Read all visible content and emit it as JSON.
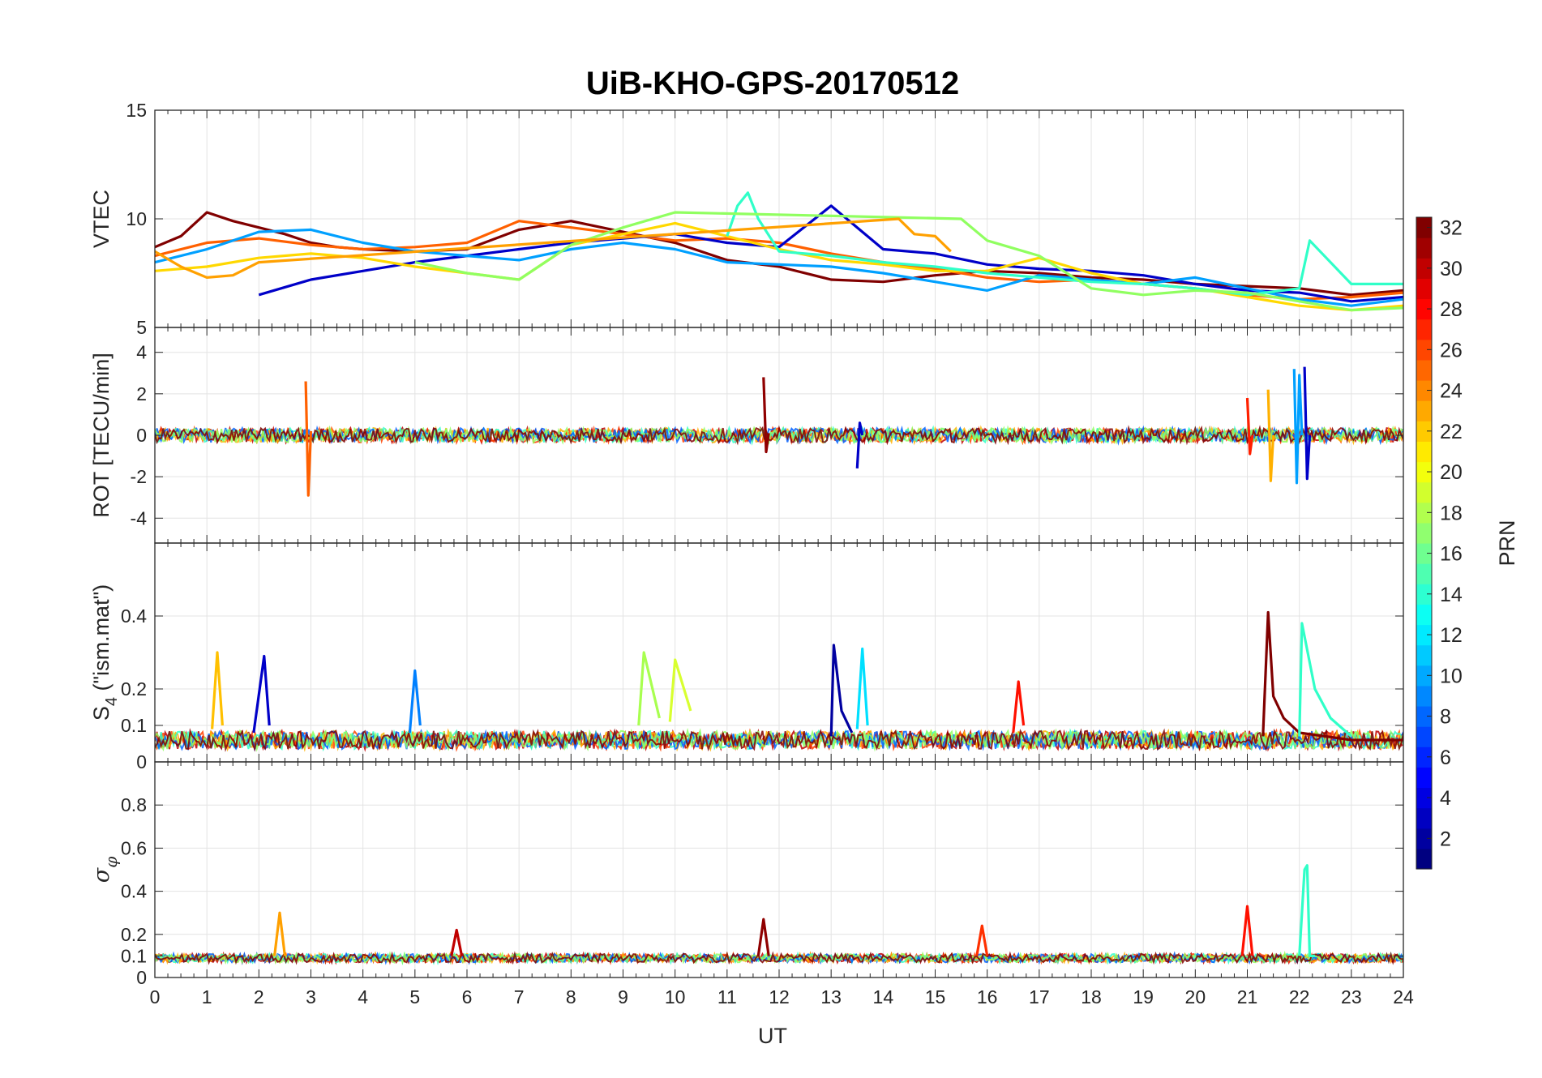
{
  "chart_data": {
    "type": "line",
    "title": "UiB-KHO-GPS-20170512",
    "xlabel": "UT",
    "xlim": [
      0,
      24
    ],
    "x_ticks": [
      "0",
      "1",
      "2",
      "3",
      "4",
      "5",
      "6",
      "7",
      "8",
      "9",
      "10",
      "11",
      "12",
      "13",
      "14",
      "15",
      "16",
      "17",
      "18",
      "19",
      "20",
      "21",
      "22",
      "23",
      "24"
    ],
    "grid": true,
    "colorbar": {
      "label": "PRN",
      "range": [
        1,
        32
      ],
      "colormap": "jet",
      "ticks": [
        "2",
        "4",
        "6",
        "8",
        "10",
        "12",
        "14",
        "16",
        "18",
        "20",
        "22",
        "24",
        "26",
        "28",
        "30",
        "32"
      ]
    },
    "panels": [
      {
        "id": "vtec",
        "ylabel": "VTEC",
        "ylim": [
          5,
          15
        ],
        "y_tick_values": [
          5,
          10,
          15
        ],
        "y_tick_labels": [
          "5",
          "10",
          "15"
        ],
        "series": [
          {
            "color": "#800000",
            "x": [
              0,
              0.5,
              1,
              1.5,
              2,
              2.5,
              3,
              3.5,
              4,
              5,
              6,
              7,
              8,
              9,
              10,
              11,
              12,
              13,
              14,
              15,
              16,
              17,
              18,
              19,
              20,
              21,
              22,
              23,
              24
            ],
            "values": [
              8.7,
              9.2,
              10.3,
              9.9,
              9.6,
              9.3,
              8.9,
              8.7,
              8.6,
              8.5,
              8.6,
              9.5,
              9.9,
              9.4,
              8.9,
              8.1,
              7.8,
              7.2,
              7.1,
              7.4,
              7.6,
              7.5,
              7.3,
              7.2,
              7.0,
              6.9,
              6.8,
              6.5,
              6.7
            ]
          },
          {
            "color": "#ff6000",
            "x": [
              0,
              1,
              2,
              3,
              4,
              5,
              6,
              7,
              8,
              9,
              10,
              11,
              12,
              13,
              14,
              15,
              16,
              17,
              18,
              19,
              20,
              21,
              22,
              23,
              24
            ],
            "values": [
              8.3,
              8.9,
              9.1,
              8.8,
              8.6,
              8.7,
              8.9,
              9.9,
              9.6,
              9.3,
              9.0,
              9.1,
              8.9,
              8.4,
              8.0,
              7.7,
              7.3,
              7.1,
              7.2,
              7.0,
              6.8,
              6.5,
              6.3,
              6.4,
              6.6
            ]
          },
          {
            "color": "#0000c8",
            "x": [
              2,
              3,
              4,
              5,
              6,
              7,
              8,
              9,
              10,
              11,
              12,
              13,
              14,
              15,
              16,
              17,
              18,
              19,
              20,
              21,
              22,
              23,
              24
            ],
            "values": [
              6.5,
              7.2,
              7.6,
              8.0,
              8.3,
              8.6,
              8.9,
              9.1,
              9.3,
              8.9,
              8.7,
              10.6,
              8.6,
              8.4,
              7.9,
              7.7,
              7.6,
              7.4,
              7.0,
              6.7,
              6.6,
              6.2,
              6.4
            ]
          },
          {
            "color": "#00a0ff",
            "x": [
              0,
              1,
              2,
              3,
              4,
              5,
              6,
              7,
              8,
              9,
              10,
              11,
              12,
              13,
              14,
              15,
              16,
              17,
              18,
              19,
              20,
              21,
              22,
              23,
              24
            ],
            "values": [
              8.0,
              8.6,
              9.4,
              9.5,
              8.9,
              8.5,
              8.3,
              8.1,
              8.6,
              8.9,
              8.6,
              8.0,
              7.9,
              7.8,
              7.5,
              7.1,
              6.7,
              7.4,
              7.2,
              7.0,
              7.3,
              6.8,
              6.3,
              6.0,
              6.3
            ]
          },
          {
            "color": "#ffd800",
            "x": [
              0,
              1,
              2,
              3,
              4,
              5,
              6,
              7,
              8,
              9,
              10,
              11,
              12,
              13,
              14,
              15,
              16,
              17,
              18,
              19,
              20,
              21,
              22,
              23,
              24
            ],
            "values": [
              7.6,
              7.8,
              8.2,
              8.4,
              8.2,
              7.8,
              7.5,
              7.2,
              8.8,
              9.3,
              9.8,
              9.2,
              8.6,
              8.1,
              7.9,
              7.6,
              7.6,
              8.2,
              7.5,
              7.0,
              6.8,
              6.4,
              6.0,
              5.8,
              6.0
            ]
          },
          {
            "color": "#30ffc8",
            "x": [
              11,
              11.2,
              11.4,
              11.6,
              12,
              13,
              14,
              15,
              16,
              17,
              18,
              19,
              20,
              21,
              22,
              22.2,
              23,
              24
            ],
            "values": [
              9.2,
              10.6,
              11.2,
              10.0,
              8.5,
              8.3,
              8.0,
              7.8,
              7.5,
              7.3,
              7.1,
              7.0,
              6.8,
              6.5,
              6.8,
              9.0,
              7.0,
              7.0
            ]
          },
          {
            "color": "#90ff60",
            "x": [
              5,
              6,
              7,
              8,
              9,
              10,
              15.5,
              16,
              17,
              18,
              19,
              20,
              21,
              22,
              23,
              24
            ],
            "values": [
              8.0,
              7.5,
              7.2,
              8.8,
              9.6,
              10.3,
              10.0,
              9.0,
              8.3,
              6.8,
              6.5,
              6.7,
              6.6,
              6.2,
              5.8,
              5.9
            ]
          },
          {
            "color": "#ffa000",
            "x": [
              0,
              0.5,
              1,
              1.5,
              2,
              14.3,
              14.6,
              15,
              15.3
            ],
            "values": [
              8.5,
              7.8,
              7.3,
              7.4,
              8.0,
              10.0,
              9.3,
              9.2,
              8.5
            ]
          }
        ]
      },
      {
        "id": "rot",
        "ylabel": "ROT [TECU/min]",
        "ylim": [
          -5.2,
          5.2
        ],
        "y_tick_values": [
          -4,
          -2,
          0,
          2,
          4
        ],
        "y_tick_labels": [
          "-4",
          "-2",
          "0",
          "2",
          "4"
        ],
        "series": [
          {
            "color": "#ff6000",
            "x": [
              2.9,
              2.95,
              3.0
            ],
            "values": [
              2.6,
              -2.9,
              0.2
            ]
          },
          {
            "color": "#900000",
            "x": [
              11.7,
              11.75,
              11.8
            ],
            "values": [
              2.8,
              -0.8,
              0.1
            ]
          },
          {
            "color": "#00a0ff",
            "x": [
              21.9,
              21.95,
              22.0,
              22.05
            ],
            "values": [
              3.2,
              -2.3,
              2.9,
              0
            ]
          },
          {
            "color": "#0000c8",
            "x": [
              22.1,
              22.15,
              22.2
            ],
            "values": [
              3.3,
              -2.1,
              0
            ]
          },
          {
            "color": "#ffb000",
            "x": [
              21.4,
              21.45,
              21.5
            ],
            "values": [
              2.2,
              -2.2,
              0
            ]
          },
          {
            "color": "#ff2000",
            "x": [
              21.0,
              21.05,
              21.1
            ],
            "values": [
              1.8,
              -0.9,
              0
            ]
          },
          {
            "color": "#0000c8",
            "x": [
              13.5,
              13.55,
              13.6
            ],
            "values": [
              -1.6,
              0.6,
              0
            ]
          }
        ]
      },
      {
        "id": "s4",
        "ylabel": "S4 (\"ism.mat\")",
        "ylim": [
          0,
          0.6
        ],
        "y_tick_values": [
          0,
          0.1,
          0.2,
          0.4
        ],
        "y_tick_labels": [
          "0",
          "0.1",
          "0.2",
          "0.4"
        ],
        "series": [
          {
            "color": "#800000",
            "x": [
              21.3,
              21.4,
              21.5,
              21.7,
              22,
              23,
              24
            ],
            "values": [
              0.07,
              0.41,
              0.18,
              0.12,
              0.08,
              0.06,
              0.06
            ]
          },
          {
            "color": "#30ffc8",
            "x": [
              22.0,
              22.05,
              22.3,
              22.6,
              23
            ],
            "values": [
              0.07,
              0.38,
              0.2,
              0.12,
              0.07
            ]
          },
          {
            "color": "#0000a0",
            "x": [
              13.0,
              13.05,
              13.2,
              13.4
            ],
            "values": [
              0.07,
              0.32,
              0.14,
              0.08
            ]
          },
          {
            "color": "#00e0ff",
            "x": [
              13.5,
              13.6,
              13.7
            ],
            "values": [
              0.09,
              0.31,
              0.1
            ]
          },
          {
            "color": "#ffc000",
            "x": [
              1.1,
              1.2,
              1.3
            ],
            "values": [
              0.09,
              0.3,
              0.1
            ]
          },
          {
            "color": "#0000c8",
            "x": [
              1.9,
              2.1,
              2.2
            ],
            "values": [
              0.08,
              0.29,
              0.1
            ]
          },
          {
            "color": "#a8ff50",
            "x": [
              9.3,
              9.4,
              9.7
            ],
            "values": [
              0.1,
              0.3,
              0.12
            ]
          },
          {
            "color": "#d8ff30",
            "x": [
              9.9,
              10.0,
              10.3
            ],
            "values": [
              0.11,
              0.28,
              0.14
            ]
          },
          {
            "color": "#0080ff",
            "x": [
              4.9,
              5.0,
              5.1
            ],
            "values": [
              0.08,
              0.25,
              0.1
            ]
          },
          {
            "color": "#ff1000",
            "x": [
              16.5,
              16.6,
              16.7
            ],
            "values": [
              0.08,
              0.22,
              0.1
            ]
          }
        ]
      },
      {
        "id": "sigma",
        "ylabel": "σφ",
        "ylim": [
          0,
          1
        ],
        "y_tick_values": [
          0,
          0.1,
          0.2,
          0.4,
          0.6,
          0.8
        ],
        "y_tick_labels": [
          "0",
          "0.1",
          "0.2",
          "0.4",
          "0.6",
          "0.8"
        ],
        "series": [
          {
            "color": "#30ffc8",
            "x": [
              22.0,
              22.1,
              22.15,
              22.2,
              22.3
            ],
            "values": [
              0.1,
              0.5,
              0.52,
              0.1,
              0.1
            ]
          },
          {
            "color": "#ff1000",
            "x": [
              20.9,
              21.0,
              21.1
            ],
            "values": [
              0.1,
              0.33,
              0.1
            ]
          },
          {
            "color": "#ffa000",
            "x": [
              2.3,
              2.4,
              2.5
            ],
            "values": [
              0.1,
              0.3,
              0.1
            ]
          },
          {
            "color": "#900000",
            "x": [
              11.6,
              11.7,
              11.8
            ],
            "values": [
              0.1,
              0.27,
              0.1
            ]
          },
          {
            "color": "#ff3000",
            "x": [
              15.8,
              15.9,
              16.0
            ],
            "values": [
              0.1,
              0.24,
              0.1
            ]
          },
          {
            "color": "#c00000",
            "x": [
              5.7,
              5.8,
              5.9
            ],
            "values": [
              0.1,
              0.22,
              0.1
            ]
          }
        ]
      }
    ]
  }
}
